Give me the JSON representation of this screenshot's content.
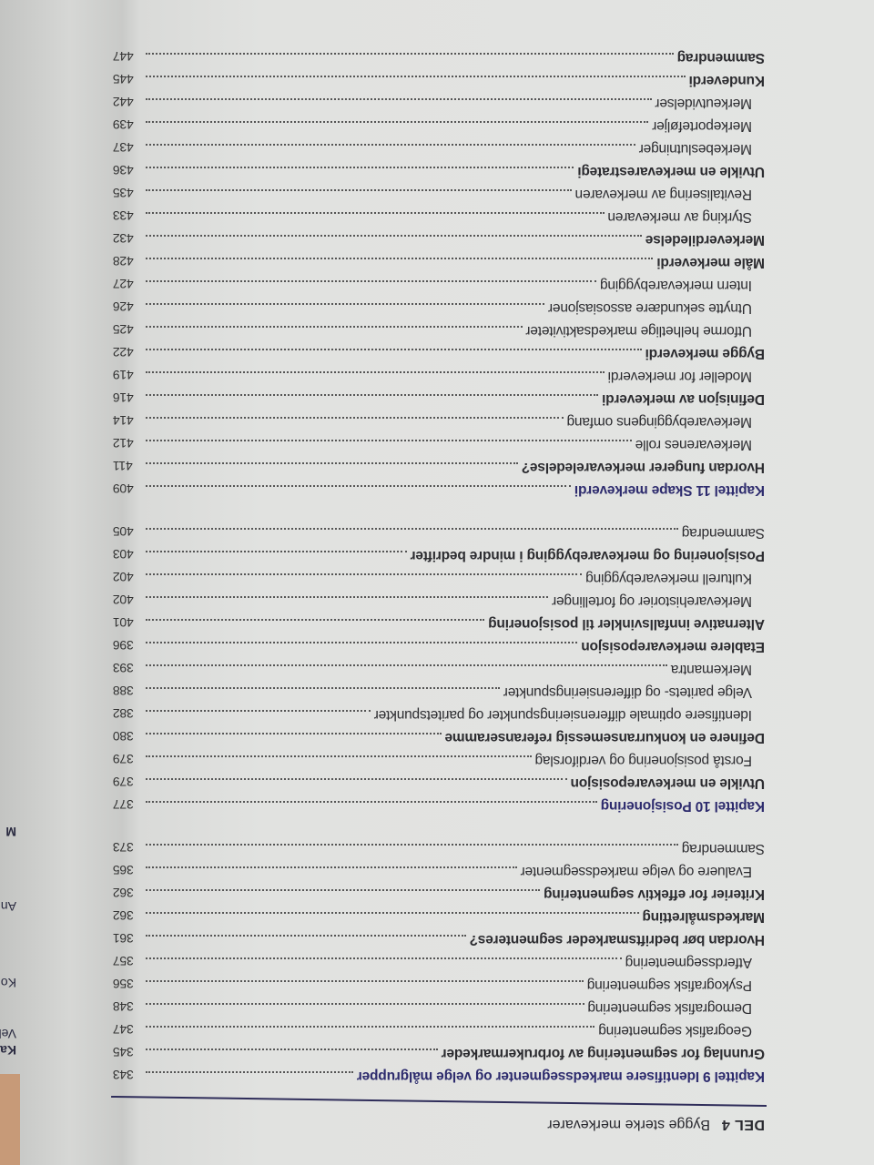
{
  "header": {
    "part": "DEL 4",
    "title": "Bygge sterke merkevarer"
  },
  "other_page_fragments": [
    "Kapi",
    "Veks",
    "Kon",
    "An",
    "M"
  ],
  "toc": [
    {
      "text": "Kapittel 9  Identifisere markedssegmenter og velge målgrupper",
      "page": "343",
      "level": "chapter"
    },
    {
      "text": "Grunnlag for segmentering av forbrukermarkeder",
      "page": "345",
      "level": "section"
    },
    {
      "text": "Geografisk segmentering",
      "page": "347",
      "level": "sub"
    },
    {
      "text": "Demografisk segmentering",
      "page": "348",
      "level": "sub"
    },
    {
      "text": "Psykografisk segmentering",
      "page": "356",
      "level": "sub"
    },
    {
      "text": "Atferdssegmentering",
      "page": "357",
      "level": "sub"
    },
    {
      "text": "Hvordan bør bedriftsmarkeder segmenteres?",
      "page": "361",
      "level": "section"
    },
    {
      "text": "Markedsmålretting",
      "page": "362",
      "level": "section"
    },
    {
      "text": "Kriterier for effektiv segmentering",
      "page": "362",
      "level": "section"
    },
    {
      "text": "Evaluere og velge markedssegmenter",
      "page": "365",
      "level": "sub"
    },
    {
      "text": "Sammendrag",
      "page": "373",
      "level": "plain"
    },
    {
      "text": "Kapittel 10  Posisjonering",
      "page": "377",
      "level": "chapter"
    },
    {
      "text": "Utvikle en merkevareposisjon",
      "page": "379",
      "level": "section"
    },
    {
      "text": "Forstå posisjonering og verdiforslag",
      "page": "379",
      "level": "sub"
    },
    {
      "text": "Definere en konkurransemessig referanseramme",
      "page": "380",
      "level": "section"
    },
    {
      "text": "Identifisere optimale differensieringspunkter og paritetspunkter",
      "page": "382",
      "level": "sub"
    },
    {
      "text": "Velge paritets- og differensieringspunkter",
      "page": "388",
      "level": "sub"
    },
    {
      "text": "Merkemantra",
      "page": "393",
      "level": "sub"
    },
    {
      "text": "Etablere merkevareposisjon",
      "page": "396",
      "level": "section"
    },
    {
      "text": "Alternative innfallsvinkler til posisjonering",
      "page": "401",
      "level": "section"
    },
    {
      "text": "Merkevarehistorier og fortellinger",
      "page": "402",
      "level": "sub"
    },
    {
      "text": "Kulturell merkevarebygging",
      "page": "402",
      "level": "sub"
    },
    {
      "text": "Posisjonering og merkevarebygging i mindre bedrifter",
      "page": "403",
      "level": "section"
    },
    {
      "text": "Sammendrag",
      "page": "405",
      "level": "plain"
    },
    {
      "text": "Kapittel 11  Skape merkeverdi",
      "page": "409",
      "level": "chapter"
    },
    {
      "text": "Hvordan fungerer merkevareledelse?",
      "page": "411",
      "level": "section"
    },
    {
      "text": "Merkevarenes rolle",
      "page": "412",
      "level": "sub"
    },
    {
      "text": "Merkevarebyggingens omfang",
      "page": "414",
      "level": "sub"
    },
    {
      "text": "Definisjon av merkeverdi",
      "page": "416",
      "level": "section"
    },
    {
      "text": "Modeller for merkeverdi",
      "page": "419",
      "level": "sub"
    },
    {
      "text": "Bygge merkeverdi",
      "page": "422",
      "level": "section"
    },
    {
      "text": "Utforme helhetlige markedsaktiviteter",
      "page": "425",
      "level": "sub"
    },
    {
      "text": "Utnytte sekundære assosiasjoner",
      "page": "426",
      "level": "sub"
    },
    {
      "text": "Intern merkevarebygging",
      "page": "427",
      "level": "sub"
    },
    {
      "text": "Måle merkeverdi",
      "page": "428",
      "level": "section"
    },
    {
      "text": "Merkeverdiledelse",
      "page": "432",
      "level": "section"
    },
    {
      "text": "Styrking av merkevaren",
      "page": "433",
      "level": "sub"
    },
    {
      "text": "Revitalisering av merkevaren",
      "page": "435",
      "level": "sub"
    },
    {
      "text": "Utvikle en merkevarestrategi",
      "page": "436",
      "level": "section"
    },
    {
      "text": "Merkebeslutninger",
      "page": "437",
      "level": "sub"
    },
    {
      "text": "Merkeporteføljer",
      "page": "439",
      "level": "sub"
    },
    {
      "text": "Merkeutvidelser",
      "page": "442",
      "level": "sub"
    },
    {
      "text": "Kundeverdi",
      "page": "445",
      "level": "section"
    },
    {
      "text": "Sammendrag",
      "page": "447",
      "level": "section"
    }
  ]
}
